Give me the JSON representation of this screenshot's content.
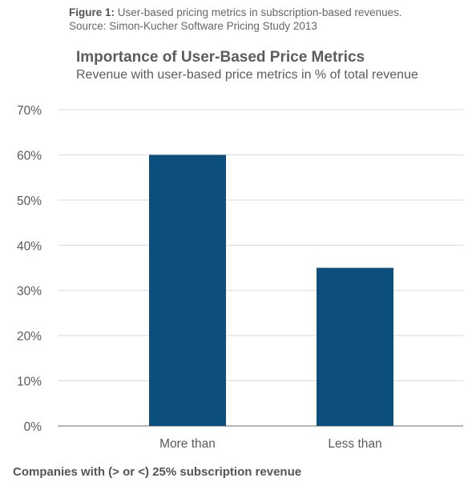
{
  "caption": {
    "label": "Figure 1:",
    "text": " User-based pricing metrics in subscription-based revenues.",
    "source": "Source: Simon-Kucher Software Pricing Study 2013"
  },
  "chart_data": {
    "type": "bar",
    "title": "Importance of User-Based Price Metrics",
    "subtitle": "Revenue with user-based price metrics in % of total revenue",
    "xlabel": "Companies with (> or <) 25% subscription revenue",
    "ylabel": "",
    "categories": [
      "More than",
      "Less than"
    ],
    "values": [
      60,
      35
    ],
    "ylim": [
      0,
      70
    ],
    "yticks": [
      0,
      10,
      20,
      30,
      40,
      50,
      60,
      70
    ],
    "ytick_labels": [
      "0%",
      "10%",
      "20%",
      "30%",
      "40%",
      "50%",
      "60%",
      "70%"
    ],
    "grid": true,
    "legend": "none",
    "colors": {
      "bar": "#0c4f7c",
      "grid": "#d9d9d9",
      "baseline": "#8a8a8a"
    }
  }
}
